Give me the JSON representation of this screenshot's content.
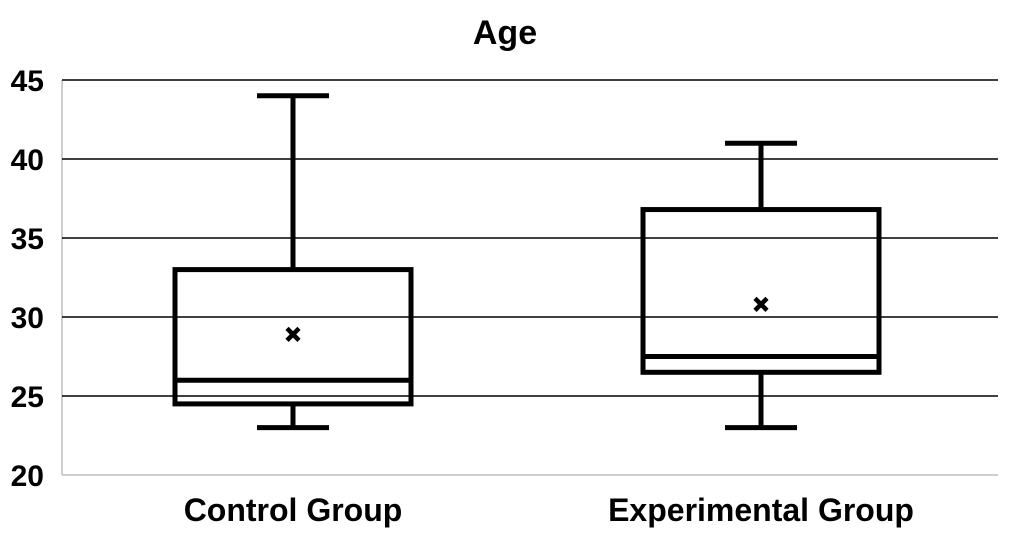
{
  "chart_data": {
    "type": "box",
    "title": "Age",
    "xlabel": "",
    "ylabel": "",
    "ylim": [
      20,
      45
    ],
    "yticks": [
      20,
      25,
      30,
      35,
      40,
      45
    ],
    "grid": true,
    "categories": [
      "Control Group",
      "Experimental Group"
    ],
    "boxes": [
      {
        "category": "Control Group",
        "min": 23,
        "q1": 24.5,
        "median": 26,
        "q3": 33,
        "max": 44,
        "mean": 28.9
      },
      {
        "category": "Experimental Group",
        "min": 23,
        "q1": 26.5,
        "median": 27.5,
        "q3": 36.8,
        "max": 41,
        "mean": 30.8
      }
    ]
  }
}
